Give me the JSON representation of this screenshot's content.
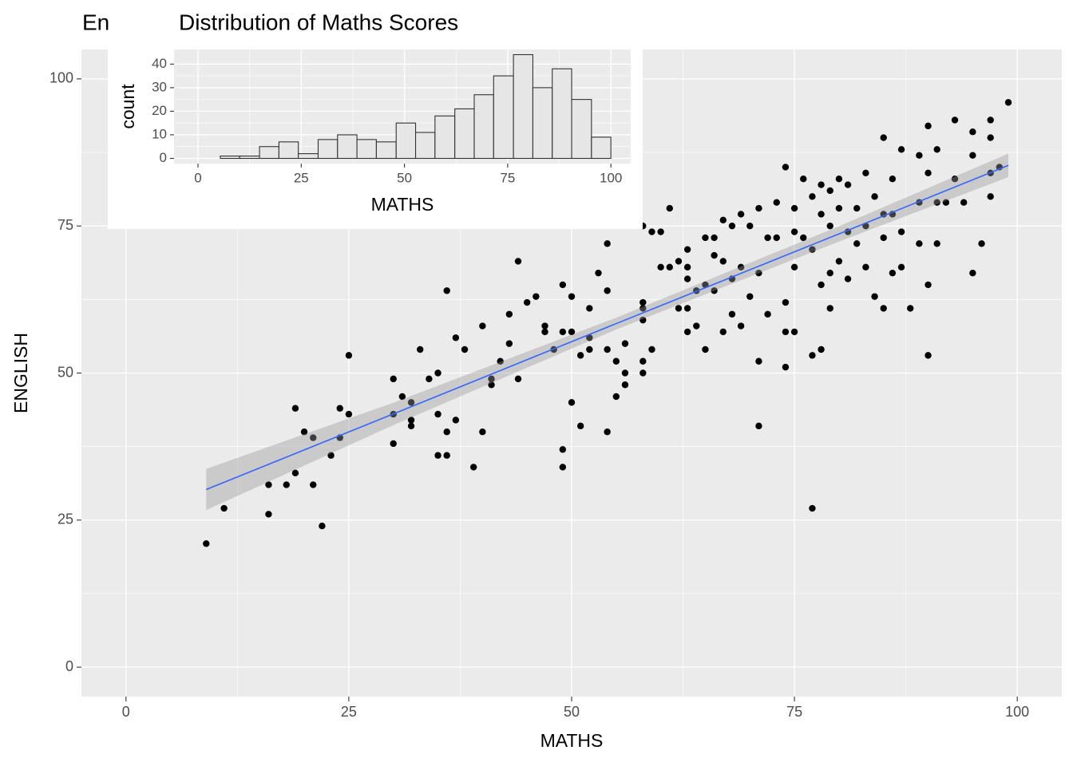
{
  "chart_data": [
    {
      "type": "scatter",
      "title": "En",
      "xlabel": "MATHS",
      "ylabel": "ENGLISH",
      "xlim": [
        -5,
        105
      ],
      "ylim": [
        -5,
        105
      ],
      "xticks": [
        0,
        25,
        50,
        75,
        100
      ],
      "yticks": [
        0,
        25,
        50,
        75,
        100
      ],
      "grid": true,
      "series": [
        {
          "color": "#000000",
          "x": [
            9,
            11,
            16,
            16,
            18,
            19,
            19,
            20,
            21,
            21,
            22,
            23,
            24,
            24,
            25,
            25,
            30,
            30,
            30,
            31,
            32,
            32,
            32,
            33,
            34,
            35,
            35,
            35,
            36,
            36,
            36,
            37,
            37,
            38,
            39,
            40,
            40,
            41,
            41,
            42,
            43,
            43,
            44,
            44,
            45,
            46,
            47,
            47,
            48,
            49,
            49,
            49,
            49,
            50,
            50,
            50,
            51,
            51,
            52,
            52,
            52,
            53,
            54,
            54,
            54,
            54,
            55,
            55,
            56,
            56,
            56,
            58,
            58,
            58,
            58,
            58,
            58,
            59,
            59,
            60,
            60,
            61,
            61,
            62,
            62,
            63,
            63,
            63,
            63,
            63,
            64,
            64,
            65,
            65,
            65,
            66,
            66,
            66,
            67,
            67,
            67,
            68,
            68,
            68,
            69,
            69,
            69,
            70,
            70,
            71,
            71,
            71,
            71,
            72,
            72,
            73,
            73,
            74,
            74,
            74,
            74,
            75,
            75,
            75,
            75,
            76,
            76,
            77,
            77,
            77,
            77,
            78,
            78,
            78,
            78,
            79,
            79,
            79,
            79,
            80,
            80,
            80,
            81,
            81,
            81,
            82,
            82,
            83,
            83,
            83,
            84,
            84,
            85,
            85,
            85,
            85,
            86,
            86,
            86,
            87,
            87,
            87,
            88,
            89,
            89,
            89,
            90,
            90,
            90,
            90,
            91,
            91,
            91,
            92,
            93,
            93,
            94,
            95,
            95,
            95,
            96,
            97,
            97,
            97,
            97,
            98,
            99
          ],
          "values": [
            21,
            27,
            31,
            26,
            31,
            44,
            33,
            40,
            39,
            31,
            24,
            36,
            44,
            39,
            53,
            43,
            49,
            43,
            38,
            46,
            45,
            42,
            41,
            54,
            49,
            50,
            43,
            36,
            64,
            40,
            36,
            56,
            42,
            54,
            34,
            58,
            40,
            49,
            48,
            52,
            55,
            60,
            69,
            49,
            62,
            63,
            58,
            57,
            54,
            65,
            57,
            37,
            34,
            63,
            57,
            45,
            53,
            41,
            61,
            56,
            54,
            67,
            72,
            64,
            54,
            40,
            52,
            46,
            55,
            50,
            48,
            75,
            62,
            61,
            59,
            52,
            50,
            74,
            54,
            74,
            68,
            78,
            68,
            69,
            61,
            71,
            68,
            66,
            61,
            57,
            58,
            64,
            73,
            65,
            54,
            73,
            70,
            64,
            76,
            69,
            57,
            75,
            66,
            60,
            77,
            68,
            58,
            75,
            63,
            78,
            67,
            52,
            41,
            73,
            60,
            79,
            73,
            85,
            62,
            51,
            57,
            78,
            74,
            68,
            57,
            83,
            73,
            80,
            71,
            53,
            27,
            82,
            77,
            65,
            54,
            81,
            75,
            67,
            61,
            83,
            78,
            69,
            82,
            74,
            66,
            78,
            72,
            84,
            75,
            68,
            80,
            63,
            90,
            77,
            73,
            61,
            83,
            77,
            67,
            88,
            74,
            68,
            61,
            87,
            79,
            72,
            92,
            84,
            65,
            53,
            88,
            79,
            72,
            79,
            93,
            83,
            79,
            91,
            87,
            67,
            72,
            93,
            80,
            90,
            84,
            85,
            96
          ]
        }
      ],
      "fit": {
        "color": "#3366ff",
        "band_color": "#999999",
        "x": [
          9,
          30,
          55,
          80,
          99
        ],
        "values": [
          30.2,
          43.05,
          58.4,
          73.65,
          85.3
        ],
        "lower": [
          26.7,
          41.15,
          57.4,
          72.35,
          83.3
        ],
        "upper": [
          33.7,
          44.95,
          59.4,
          74.95,
          87.3
        ]
      }
    },
    {
      "type": "histogram",
      "title": "Distribution of Maths Scores",
      "xlabel": "MATHS",
      "ylabel": "count",
      "xlim": [
        -5.8,
        104.8
      ],
      "ylim": [
        -2.2,
        46.2
      ],
      "xticks": [
        0,
        25,
        50,
        75,
        100
      ],
      "yticks": [
        0,
        10,
        20,
        30,
        40
      ],
      "grid": true,
      "color": "#e6e6e6",
      "edgecolor": "#333333",
      "bins": [
        5.4,
        10.1,
        14.9,
        19.6,
        24.3,
        29.1,
        33.8,
        38.5,
        43.2,
        48.0,
        52.7,
        57.4,
        62.2,
        66.9,
        71.6,
        76.4,
        81.1,
        85.8,
        90.5,
        95.3,
        100.0
      ],
      "values": [
        1,
        1,
        5,
        7,
        2,
        8,
        10,
        8,
        7,
        15,
        11,
        18,
        21,
        27,
        35,
        44,
        30,
        38,
        25,
        9
      ]
    }
  ]
}
